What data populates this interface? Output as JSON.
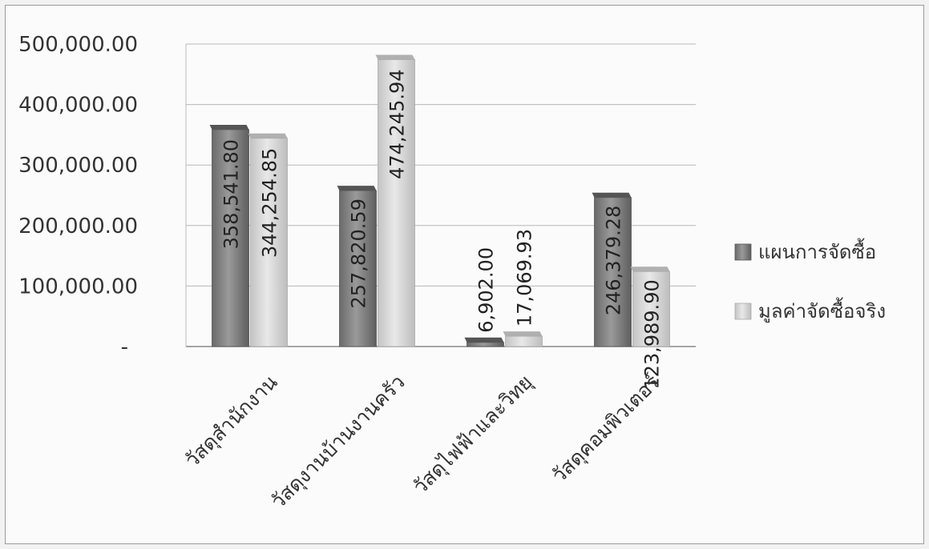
{
  "chart_data": {
    "type": "bar",
    "categories": [
      "วัสดุสำนักงาน",
      "วัสดุงานบ้านงานครัว",
      "วัสดุไฟฟ้าและวิทยุ",
      "วัสดุคอมพิวเตอร์"
    ],
    "series": [
      {
        "name": "แผนการจัดซื้อ",
        "values": [
          358541.8,
          257820.59,
          6902.0,
          246379.28
        ],
        "labels": [
          "358,541.80",
          "257,820.59",
          "6,902.00",
          "246,379.28"
        ],
        "color": "#7d7d7d"
      },
      {
        "name": "มูลค่าจัดซื้อจริง",
        "values": [
          344254.85,
          474245.94,
          17069.93,
          123989.9
        ],
        "labels": [
          "344,254.85",
          "474,245.94",
          "17,069.93",
          "123,989.90"
        ],
        "color": "#d6d6d6"
      }
    ],
    "y_ticks": [
      "-",
      "100,000.00",
      "200,000.00",
      "300,000.00",
      "400,000.00",
      "500,000.00"
    ],
    "ylim": [
      0,
      500000
    ],
    "grid": true,
    "legend_position": "right"
  }
}
